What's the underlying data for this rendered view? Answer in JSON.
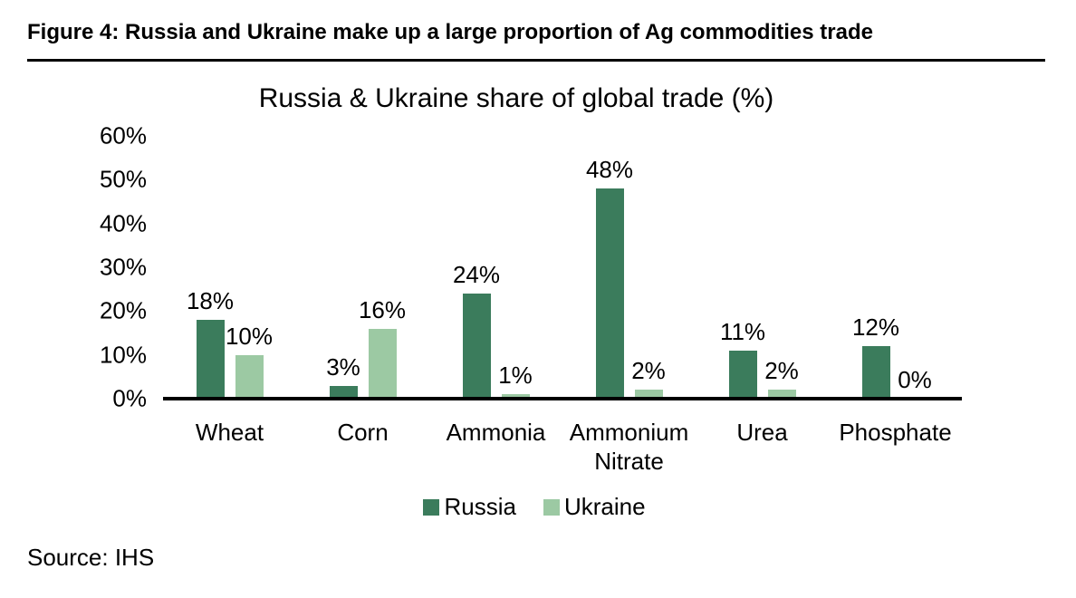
{
  "page": {
    "figure_title": "Figure 4: Russia and Ukraine make up a large proportion of Ag commodities trade",
    "source": "Source: IHS"
  },
  "chart_data": {
    "type": "bar",
    "title": "Russia & Ukraine share of global trade (%)",
    "categories": [
      "Wheat",
      "Corn",
      "Ammonia",
      "Ammonium Nitrate",
      "Urea",
      "Phosphate"
    ],
    "series": [
      {
        "name": "Russia",
        "color": "#3B7C5C",
        "values": [
          18,
          3,
          24,
          48,
          11,
          12
        ]
      },
      {
        "name": "Ukraine",
        "color": "#9CC9A3",
        "values": [
          10,
          16,
          1,
          2,
          2,
          0
        ]
      }
    ],
    "data_labels": true,
    "data_label_suffix": "%",
    "y_axis": {
      "min": 0,
      "max": 60,
      "tick_step": 10,
      "tick_labels": [
        "0%",
        "10%",
        "20%",
        "30%",
        "40%",
        "50%",
        "60%"
      ]
    },
    "grid": false,
    "legend_position": "bottom",
    "axis_color": "#000000",
    "text_color": "#000000"
  }
}
